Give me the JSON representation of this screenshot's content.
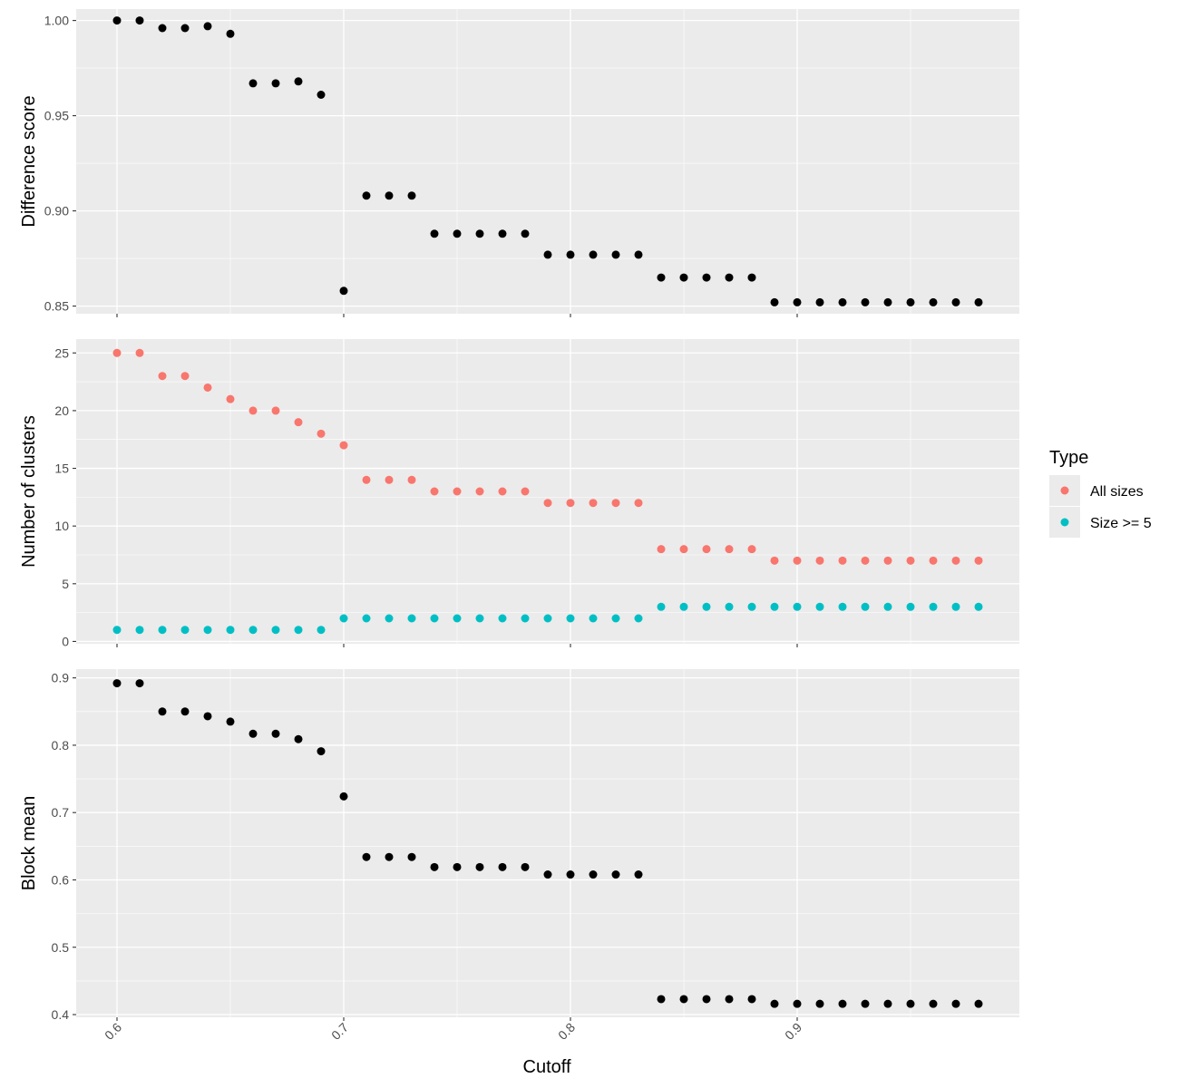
{
  "chart_data": [
    {
      "type": "scatter",
      "ylabel": "Difference score",
      "ylim": [
        0.846,
        1.006
      ],
      "yticks": [
        0.85,
        0.9,
        0.95,
        1.0
      ],
      "ytick_labels": [
        "0.85",
        "0.90",
        "0.95",
        "1.00"
      ],
      "grid": true,
      "series": [
        {
          "color": "#000000",
          "x": [
            0.6,
            0.61,
            0.62,
            0.63,
            0.64,
            0.65,
            0.66,
            0.67,
            0.68,
            0.69,
            0.7,
            0.71,
            0.72,
            0.73,
            0.74,
            0.75,
            0.76,
            0.77,
            0.78,
            0.79,
            0.8,
            0.81,
            0.82,
            0.83,
            0.84,
            0.85,
            0.86,
            0.87,
            0.88,
            0.89,
            0.9,
            0.91,
            0.92,
            0.93,
            0.94,
            0.95,
            0.96,
            0.97,
            0.98
          ],
          "y": [
            1.0,
            1.0,
            0.996,
            0.996,
            0.997,
            0.993,
            0.967,
            0.967,
            0.968,
            0.961,
            0.858,
            0.908,
            0.908,
            0.908,
            0.888,
            0.888,
            0.888,
            0.888,
            0.888,
            0.877,
            0.877,
            0.877,
            0.877,
            0.877,
            0.865,
            0.865,
            0.865,
            0.865,
            0.865,
            0.852,
            0.852,
            0.852,
            0.852,
            0.852,
            0.852,
            0.852,
            0.852,
            0.852,
            0.852
          ]
        }
      ]
    },
    {
      "type": "scatter",
      "ylabel": "Number of clusters",
      "ylim": [
        -0.2,
        26.2
      ],
      "yticks": [
        0,
        5,
        10,
        15,
        20,
        25
      ],
      "ytick_labels": [
        "0",
        "5",
        "10",
        "15",
        "20",
        "25"
      ],
      "grid": true,
      "legend": {
        "title": "Type",
        "placement": "right",
        "entries": [
          "All sizes",
          "Size >= 5"
        ]
      },
      "series": [
        {
          "name": "All sizes",
          "color": "#f8766d",
          "x": [
            0.6,
            0.61,
            0.62,
            0.63,
            0.64,
            0.65,
            0.66,
            0.67,
            0.68,
            0.69,
            0.7,
            0.71,
            0.72,
            0.73,
            0.74,
            0.75,
            0.76,
            0.77,
            0.78,
            0.79,
            0.8,
            0.81,
            0.82,
            0.83,
            0.84,
            0.85,
            0.86,
            0.87,
            0.88,
            0.89,
            0.9,
            0.91,
            0.92,
            0.93,
            0.94,
            0.95,
            0.96,
            0.97,
            0.98
          ],
          "y": [
            25,
            25,
            23,
            23,
            22,
            21,
            20,
            20,
            19,
            18,
            17,
            14,
            14,
            14,
            13,
            13,
            13,
            13,
            13,
            12,
            12,
            12,
            12,
            12,
            8,
            8,
            8,
            8,
            8,
            7,
            7,
            7,
            7,
            7,
            7,
            7,
            7,
            7,
            7
          ]
        },
        {
          "name": "Size >= 5",
          "color": "#00bfc4",
          "x": [
            0.6,
            0.61,
            0.62,
            0.63,
            0.64,
            0.65,
            0.66,
            0.67,
            0.68,
            0.69,
            0.7,
            0.71,
            0.72,
            0.73,
            0.74,
            0.75,
            0.76,
            0.77,
            0.78,
            0.79,
            0.8,
            0.81,
            0.82,
            0.83,
            0.84,
            0.85,
            0.86,
            0.87,
            0.88,
            0.89,
            0.9,
            0.91,
            0.92,
            0.93,
            0.94,
            0.95,
            0.96,
            0.97,
            0.98
          ],
          "y": [
            1,
            1,
            1,
            1,
            1,
            1,
            1,
            1,
            1,
            1,
            2,
            2,
            2,
            2,
            2,
            2,
            2,
            2,
            2,
            2,
            2,
            2,
            2,
            2,
            3,
            3,
            3,
            3,
            3,
            3,
            3,
            3,
            3,
            3,
            3,
            3,
            3,
            3,
            3
          ]
        }
      ]
    },
    {
      "type": "scatter",
      "ylabel": "Block mean",
      "xlabel": "Cutoff",
      "ylim": [
        0.396,
        0.913
      ],
      "yticks": [
        0.4,
        0.5,
        0.6,
        0.7,
        0.8,
        0.9
      ],
      "ytick_labels": [
        "0.4",
        "0.5",
        "0.6",
        "0.7",
        "0.8",
        "0.9"
      ],
      "grid": true,
      "series": [
        {
          "color": "#000000",
          "x": [
            0.6,
            0.61,
            0.62,
            0.63,
            0.64,
            0.65,
            0.66,
            0.67,
            0.68,
            0.69,
            0.7,
            0.71,
            0.72,
            0.73,
            0.74,
            0.75,
            0.76,
            0.77,
            0.78,
            0.79,
            0.8,
            0.81,
            0.82,
            0.83,
            0.84,
            0.85,
            0.86,
            0.87,
            0.88,
            0.89,
            0.9,
            0.91,
            0.92,
            0.93,
            0.94,
            0.95,
            0.96,
            0.97,
            0.98
          ],
          "y": [
            0.892,
            0.892,
            0.85,
            0.85,
            0.843,
            0.835,
            0.817,
            0.817,
            0.809,
            0.791,
            0.724,
            0.634,
            0.634,
            0.634,
            0.619,
            0.619,
            0.619,
            0.619,
            0.619,
            0.608,
            0.608,
            0.608,
            0.608,
            0.608,
            0.423,
            0.423,
            0.423,
            0.423,
            0.423,
            0.416,
            0.416,
            0.416,
            0.416,
            0.416,
            0.416,
            0.416,
            0.416,
            0.416,
            0.416
          ]
        }
      ]
    }
  ],
  "shared_x": {
    "xlim": [
      0.582,
      0.998
    ],
    "xticks": [
      0.6,
      0.7,
      0.8,
      0.9
    ],
    "xtick_labels": [
      "0.6",
      "0.7",
      "0.8",
      "0.9"
    ],
    "xlabel": "Cutoff"
  },
  "colors": {
    "panel_background": "#ebebeb",
    "grid_major": "#ffffff",
    "all_sizes": "#f8766d",
    "size_ge_5": "#00bfc4",
    "points_default": "#000000"
  }
}
